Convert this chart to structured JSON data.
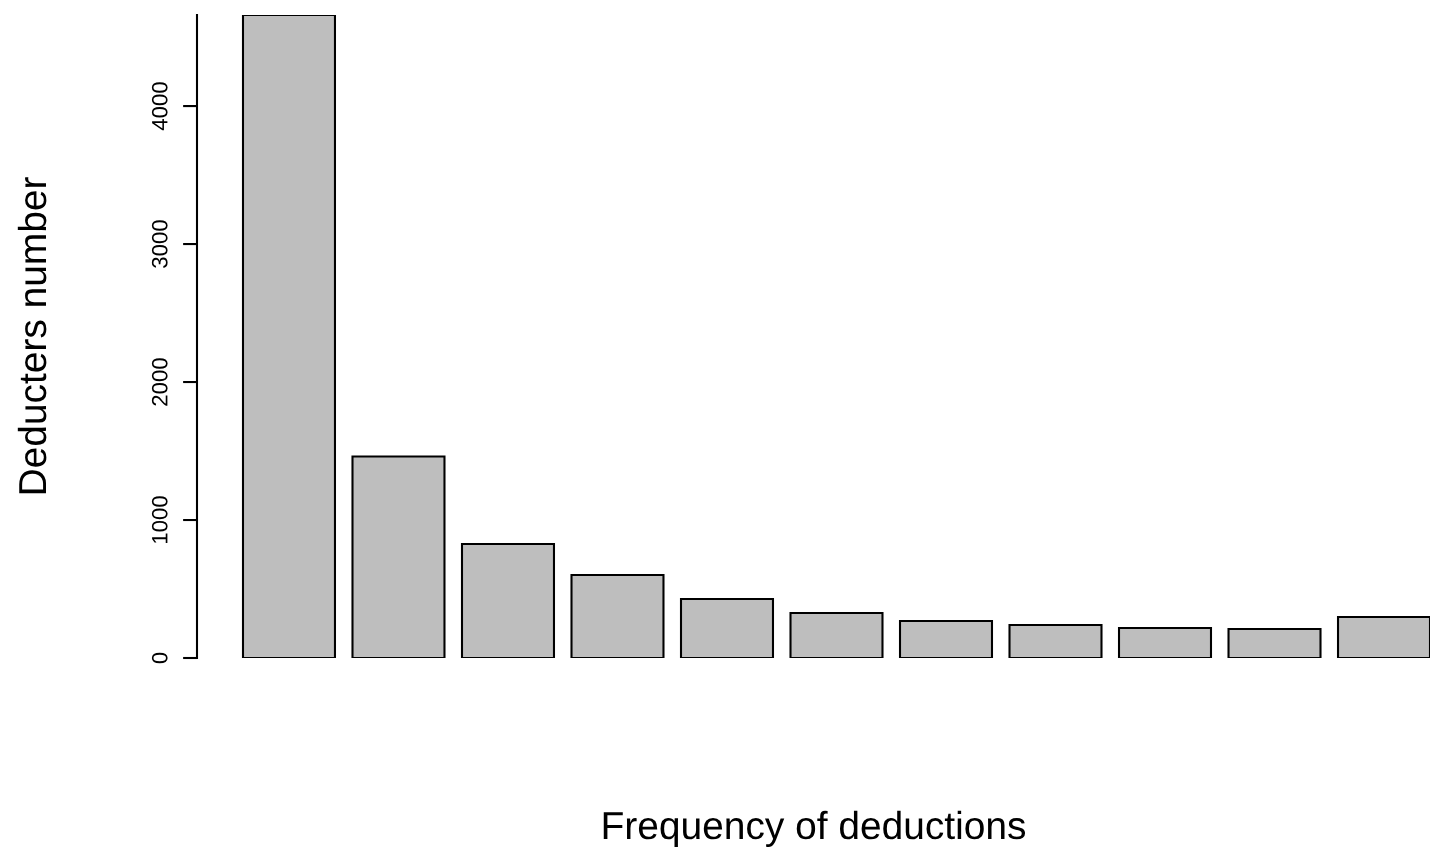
{
  "chart_data": {
    "type": "bar",
    "xlabel": "Frequency of deductions",
    "ylabel": "Deducters number",
    "categories": [
      null,
      null,
      null,
      null,
      null,
      null,
      null,
      null,
      null,
      null,
      null
    ],
    "values": [
      4660,
      1460,
      826,
      601,
      428,
      326,
      268,
      239,
      217,
      210,
      297
    ],
    "color": "#bebebe",
    "ylim": [
      0,
      4660
    ],
    "yticks": [
      0,
      1000,
      2000,
      3000,
      4000
    ],
    "grid": false,
    "tick_labels": "y"
  }
}
